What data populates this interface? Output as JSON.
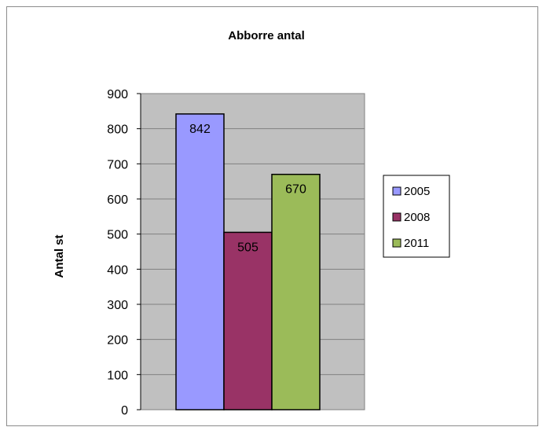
{
  "chart_data": {
    "type": "bar",
    "title": "Abborre antal",
    "xlabel": "",
    "ylabel": "Antal st",
    "ylim": [
      0,
      900
    ],
    "yticks": [
      0,
      100,
      200,
      300,
      400,
      500,
      600,
      700,
      800,
      900
    ],
    "grid": true,
    "legend_position": "right",
    "series": [
      {
        "name": "2005",
        "values": [
          842
        ],
        "color": "#9999ff"
      },
      {
        "name": "2008",
        "values": [
          505
        ],
        "color": "#993366"
      },
      {
        "name": "2011",
        "values": [
          670
        ],
        "color": "#9bbb59"
      }
    ],
    "plot_background": "#c0c0c0"
  }
}
